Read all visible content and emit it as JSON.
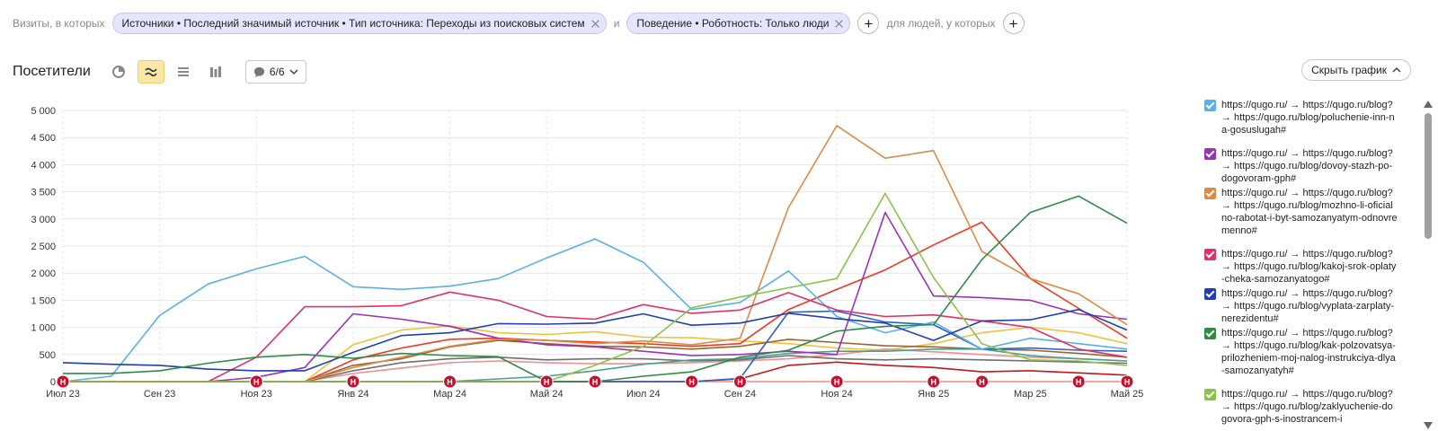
{
  "filters": {
    "prefix": "Визиты, в которых",
    "chip1": "Источники • Последний значимый источник • Тип источника: Переходы из поисковых систем",
    "conj": "и",
    "chip2": "Поведение • Роботность: Только люди",
    "suffix": "для людей, у которых"
  },
  "toolbar": {
    "title": "Посетители",
    "series_toggle": "6/6",
    "hide_chart": "Скрыть график"
  },
  "chart_data": {
    "type": "line",
    "x": [
      "2023-07",
      "2023-08",
      "2023-09",
      "2023-10",
      "2023-11",
      "2023-12",
      "2024-01",
      "2024-02",
      "2024-03",
      "2024-04",
      "2024-05",
      "2024-06",
      "2024-07",
      "2024-08",
      "2024-09",
      "2024-10",
      "2024-11",
      "2024-12",
      "2025-01",
      "2025-02",
      "2025-03",
      "2025-04",
      "2025-05"
    ],
    "x_tick_labels": [
      "Июл 23",
      "Сен 23",
      "Ноя 23",
      "Янв 24",
      "Мар 24",
      "Май 24",
      "Июл 24",
      "Сен 24",
      "Ноя 24",
      "Янв 25",
      "Мар 25",
      "Май 25"
    ],
    "y_tick_labels": [
      "0",
      "500",
      "1 000",
      "1 500",
      "2 000",
      "2 500",
      "3 000",
      "3 500",
      "4 000",
      "4 500",
      "5 000"
    ],
    "ylim": [
      0,
      5000
    ],
    "grid": true,
    "legend_position": "right",
    "annotation_marker": "Н",
    "annotation_indices": [
      0,
      4,
      6,
      8,
      10,
      11,
      13,
      14,
      16,
      18,
      19,
      21,
      22
    ],
    "series": [
      {
        "name": "https://qugo.ru/ → https://qugo.ru/blog? → https://qugo.ru/blog/poluchenie-inn-na-gosuslugah#",
        "color": "#5ab0e6",
        "values": [
          0,
          100,
          1220,
          1800,
          2080,
          2310,
          1750,
          1700,
          1760,
          1900,
          2280,
          2630,
          2200,
          1330,
          1460,
          2040,
          1200,
          900,
          1100,
          600,
          800,
          700,
          600
        ]
      },
      {
        "name": "https://qugo.ru/ → https://qugo.ru/blog? → https://qugo.ru/blog/dovoy-stazh-po-dogovoram-gph#",
        "color": "#9b32b4",
        "values": [
          0,
          0,
          0,
          0,
          80,
          260,
          1250,
          1150,
          1020,
          800,
          680,
          640,
          560,
          480,
          500,
          560,
          500,
          3120,
          1580,
          1550,
          1500,
          1250,
          1150
        ]
      },
      {
        "name": "https://qugo.ru/ → https://qugo.ru/blog? → https://qugo.ru/blog/mozhno-li-oficialno-rabotat-i-byt-samozanyatym-odnovremenno#",
        "color": "#d98c4a",
        "values": [
          0,
          0,
          0,
          0,
          0,
          0,
          260,
          450,
          650,
          780,
          760,
          700,
          750,
          680,
          800,
          3210,
          4720,
          4120,
          4260,
          2400,
          1900,
          1620,
          1050
        ]
      },
      {
        "name": "https://qugo.ru/ → https://qugo.ru/blog? → https://qugo.ru/blog/kakoj-srok-oplaty-cheka-samozanyatogo#",
        "color": "#e0306a",
        "values": [
          0,
          0,
          0,
          0,
          450,
          1380,
          1380,
          1400,
          1650,
          1500,
          1200,
          1150,
          1420,
          1260,
          1320,
          1640,
          1320,
          1200,
          1230,
          1120,
          1000,
          600,
          450
        ]
      },
      {
        "name": "https://qugo.ru/ → https://qugo.ru/blog? → https://qugo.ru/blog/vyplata-zarplaty-nerezidentu#",
        "color": "#1f3fae",
        "values": [
          350,
          320,
          300,
          230,
          200,
          200,
          540,
          850,
          900,
          1070,
          1060,
          1080,
          1250,
          1040,
          1080,
          1260,
          1160,
          1080,
          760,
          1120,
          1140,
          1330,
          950
        ]
      },
      {
        "name": "https://qugo.ru/ → https://qugo.ru/blog? → https://qugo.ru/blog/kak-polzovatsya-prilozheniem-moj-nalog-instrukciya-dlya-samozanyatyh#",
        "color": "#2e8b46",
        "values": [
          150,
          150,
          200,
          340,
          450,
          500,
          430,
          520,
          480,
          460,
          0,
          0,
          100,
          180,
          450,
          580,
          930,
          1020,
          1050,
          2250,
          3120,
          3420,
          2920
        ]
      },
      {
        "name": "https://qugo.ru/ → https://qugo.ru/blog? → https://qugo.ru/blog/zaklyuchenie-dogovora-gph-s-inostrancem-i",
        "color": "#8bc34a",
        "values": [
          0,
          0,
          0,
          0,
          0,
          0,
          0,
          0,
          0,
          0,
          0,
          300,
          650,
          1360,
          1560,
          1730,
          1900,
          3470,
          1920,
          700,
          400,
          380,
          300
        ]
      }
    ],
    "extra_lines": [
      {
        "color": "#f0c040",
        "values": [
          0,
          0,
          0,
          0,
          0,
          0,
          680,
          950,
          1030,
          900,
          870,
          920,
          820,
          810,
          750,
          700,
          620,
          580,
          700,
          900,
          1000,
          900,
          700
        ]
      },
      {
        "color": "#f03820",
        "values": [
          0,
          0,
          0,
          0,
          0,
          0,
          400,
          620,
          780,
          800,
          760,
          730,
          700,
          650,
          700,
          1330,
          1700,
          2060,
          2520,
          2940,
          1900,
          1350,
          800
        ]
      },
      {
        "color": "#9a6430",
        "values": [
          0,
          0,
          0,
          0,
          0,
          0,
          300,
          420,
          640,
          760,
          700,
          650,
          640,
          600,
          650,
          780,
          720,
          660,
          640,
          600,
          580,
          520,
          450
        ]
      },
      {
        "color": "#ec9090",
        "values": [
          0,
          0,
          0,
          0,
          0,
          0,
          150,
          250,
          350,
          380,
          350,
          330,
          330,
          350,
          380,
          420,
          500,
          600,
          550,
          500,
          450,
          420,
          380
        ]
      },
      {
        "color": "#707070",
        "values": [
          0,
          0,
          0,
          0,
          0,
          0,
          200,
          350,
          420,
          450,
          400,
          420,
          420,
          380,
          400,
          480,
          420,
          400,
          420,
          400,
          380,
          360,
          340
        ]
      },
      {
        "color": "#4aa090",
        "values": [
          0,
          0,
          0,
          0,
          0,
          0,
          0,
          0,
          0,
          50,
          100,
          200,
          320,
          400,
          420,
          520,
          560,
          560,
          600,
          600,
          480,
          420,
          380
        ]
      },
      {
        "color": "#c01818",
        "values": [
          0,
          0,
          0,
          0,
          0,
          0,
          0,
          0,
          0,
          0,
          0,
          0,
          0,
          0,
          50,
          300,
          360,
          300,
          260,
          180,
          200,
          160,
          120
        ]
      },
      {
        "color": "#3060c0",
        "values": [
          0,
          0,
          0,
          0,
          0,
          0,
          0,
          0,
          0,
          0,
          0,
          0,
          0,
          0,
          60,
          1280,
          1300,
          1100,
          1050,
          600,
          620,
          580,
          560
        ]
      }
    ]
  }
}
